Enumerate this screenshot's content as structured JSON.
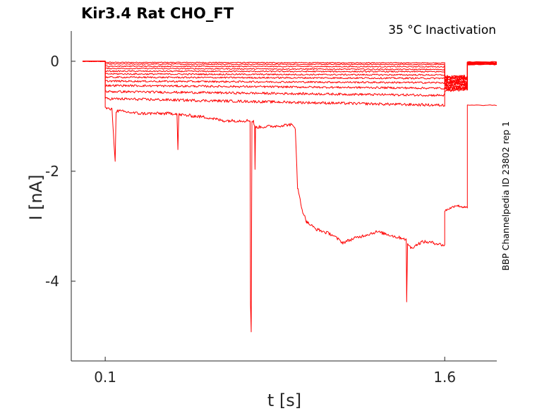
{
  "chart_data": {
    "type": "line",
    "title": "Kir3.4  Rat  CHO_FT",
    "subtitle": "35 °C  Inactivation",
    "side_label": "BBP Channelpedia ID 23802 rep 1",
    "xlabel": "t [s]",
    "ylabel": "I [nA]",
    "xlim": [
      -0.05,
      1.83
    ],
    "ylim": [
      -5.45,
      0.55
    ],
    "x_ticks": [
      {
        "value": 0.1,
        "label": "0.1"
      },
      {
        "value": 1.6,
        "label": "1.6"
      }
    ],
    "y_ticks": [
      {
        "value": 0,
        "label": "0"
      },
      {
        "value": -2,
        "label": "-2"
      },
      {
        "value": -4,
        "label": "-4"
      }
    ],
    "grid": false,
    "trace_color": "#ff0000",
    "sweep_segments": {
      "pre": [
        0.0,
        0.1
      ],
      "step": [
        0.1,
        1.6
      ],
      "gap": [
        1.6,
        1.7
      ],
      "post": [
        1.7,
        1.83
      ]
    },
    "series": [
      {
        "pre": 0.0,
        "step": [
          [
            0.1,
            -0.02
          ],
          [
            1.6,
            -0.03
          ]
        ],
        "gap": -0.28,
        "post": -0.01
      },
      {
        "pre": 0.0,
        "step": [
          [
            0.1,
            -0.05
          ],
          [
            1.6,
            -0.06
          ]
        ],
        "gap": -0.3,
        "post": -0.02
      },
      {
        "pre": 0.0,
        "step": [
          [
            0.1,
            -0.09
          ],
          [
            1.6,
            -0.1
          ]
        ],
        "gap": -0.32,
        "post": -0.02
      },
      {
        "pre": 0.0,
        "step": [
          [
            0.1,
            -0.13
          ],
          [
            1.6,
            -0.15
          ]
        ],
        "gap": -0.35,
        "post": -0.03
      },
      {
        "pre": 0.0,
        "step": [
          [
            0.1,
            -0.18
          ],
          [
            1.6,
            -0.19
          ]
        ],
        "gap": -0.37,
        "post": -0.03
      },
      {
        "pre": 0.0,
        "step": [
          [
            0.1,
            -0.23
          ],
          [
            1.6,
            -0.25
          ]
        ],
        "gap": -0.4,
        "post": -0.04
      },
      {
        "pre": 0.0,
        "step": [
          [
            0.1,
            -0.29
          ],
          [
            1.6,
            -0.31
          ]
        ],
        "gap": -0.42,
        "post": -0.04
      },
      {
        "pre": 0.0,
        "step": [
          [
            0.1,
            -0.36
          ],
          [
            1.6,
            -0.39
          ]
        ],
        "gap": -0.45,
        "post": -0.05
      },
      {
        "pre": 0.0,
        "step": [
          [
            0.1,
            -0.44
          ],
          [
            1.6,
            -0.49
          ]
        ],
        "gap": -0.48,
        "post": -0.05
      },
      {
        "pre": 0.0,
        "step": [
          [
            0.1,
            -0.55
          ],
          [
            1.6,
            -0.62
          ]
        ],
        "gap": -0.5,
        "post": -0.06
      },
      {
        "pre": 0.0,
        "step": [
          [
            0.1,
            -0.68
          ],
          [
            1.6,
            -0.8
          ]
        ],
        "gap": -0.52,
        "post": -0.06
      },
      {
        "pre": 0.0,
        "step": [
          [
            0.1,
            -0.85
          ],
          [
            0.13,
            -0.88
          ],
          [
            0.144,
            -1.84
          ],
          [
            0.148,
            -0.9
          ],
          [
            0.25,
            -0.95
          ],
          [
            0.417,
            -0.95
          ],
          [
            0.421,
            -1.62
          ],
          [
            0.425,
            -0.97
          ],
          [
            0.55,
            -1.02
          ],
          [
            0.62,
            -1.08
          ],
          [
            0.74,
            -1.08
          ],
          [
            0.742,
            -4.4
          ],
          [
            0.745,
            -4.93
          ],
          [
            0.748,
            -1.1
          ],
          [
            0.755,
            -1.08
          ],
          [
            0.76,
            -1.2
          ],
          [
            0.762,
            -1.95
          ],
          [
            0.764,
            -1.2
          ],
          [
            0.85,
            -1.18
          ],
          [
            0.92,
            -1.15
          ],
          [
            0.94,
            -1.22
          ],
          [
            0.95,
            -2.3
          ],
          [
            0.97,
            -2.7
          ],
          [
            0.99,
            -2.92
          ],
          [
            1.03,
            -3.05
          ],
          [
            1.1,
            -3.15
          ],
          [
            1.15,
            -3.3
          ],
          [
            1.2,
            -3.22
          ],
          [
            1.3,
            -3.1
          ],
          [
            1.35,
            -3.15
          ],
          [
            1.39,
            -3.2
          ],
          [
            1.42,
            -3.22
          ],
          [
            1.43,
            -3.25
          ],
          [
            1.432,
            -4.4
          ],
          [
            1.436,
            -3.3
          ],
          [
            1.45,
            -3.4
          ],
          [
            1.5,
            -3.28
          ],
          [
            1.55,
            -3.3
          ],
          [
            1.6,
            -3.35
          ]
        ],
        "gap": [
          [
            1.6,
            -2.72
          ],
          [
            1.65,
            -2.62
          ],
          [
            1.69,
            -2.66
          ]
        ],
        "post": -0.8
      }
    ]
  }
}
